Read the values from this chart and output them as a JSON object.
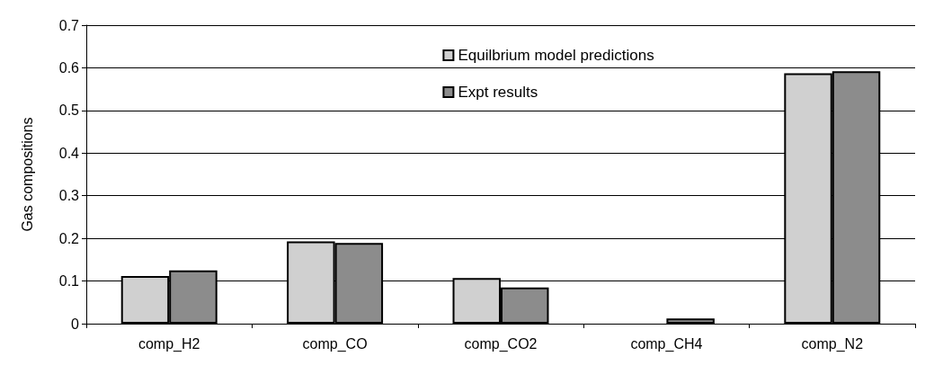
{
  "chart_data": {
    "type": "bar",
    "ylabel": "Gas compositions",
    "categories": [
      "comp_H2",
      "comp_CO",
      "comp_CO2",
      "comp_CH4",
      "comp_N2"
    ],
    "series": [
      {
        "name": "Equilbrium model predictions",
        "color": "#d0d0d0",
        "values": [
          0.112,
          0.193,
          0.107,
          null,
          0.587
        ]
      },
      {
        "name": "Expt results",
        "color": "#8c8c8c",
        "values": [
          0.125,
          0.189,
          0.085,
          0.012,
          0.592
        ]
      }
    ],
    "ylim": [
      0,
      0.7
    ],
    "yticks": [
      0,
      0.1,
      0.2,
      0.3,
      0.4,
      0.5,
      0.6,
      0.7
    ],
    "grid": "y",
    "legend": "top right"
  }
}
